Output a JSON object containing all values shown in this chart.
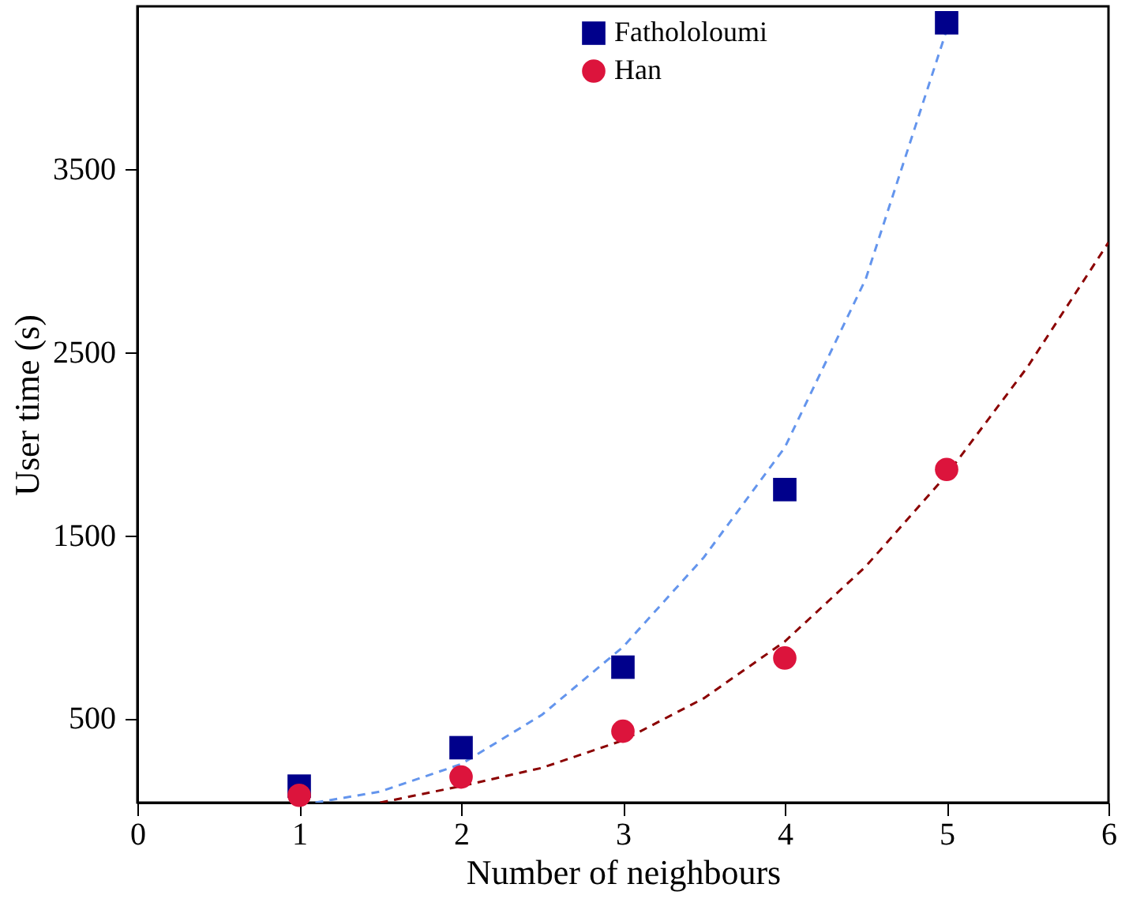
{
  "chart_data": {
    "type": "scatter",
    "xlabel": "Number of neighbours",
    "ylabel": "User time (s)",
    "xlim": [
      0,
      6
    ],
    "xticks": [
      0,
      1,
      2,
      3,
      4,
      5,
      6
    ],
    "ylim": [
      40,
      4390
    ],
    "yticks": [
      500,
      1500,
      2500,
      3500
    ],
    "legend": "top",
    "series": [
      {
        "name": "Fathololoumi",
        "color": "#00008b",
        "marker": "square",
        "x": [
          1,
          2,
          3,
          4,
          5
        ],
        "values": [
          130,
          340,
          780,
          1750,
          4300
        ]
      },
      {
        "name": "Han",
        "color": "#dc143c",
        "marker": "circle",
        "x": [
          1,
          2,
          3,
          4,
          5
        ],
        "values": [
          80,
          180,
          430,
          830,
          1860
        ]
      },
      {
        "type": "line",
        "color": "#6495ed",
        "line_style": "dashed",
        "x": [
          1.1,
          1.5,
          2,
          2.5,
          3,
          3.5,
          4,
          4.5,
          5
        ],
        "values": [
          40,
          100,
          250,
          520,
          890,
          1380,
          1980,
          2900,
          4260
        ]
      },
      {
        "type": "line",
        "color": "#8b0000",
        "line_style": "dashed",
        "x": [
          1.5,
          2,
          2.5,
          3,
          3.5,
          4,
          4.5,
          5,
          5.5,
          6
        ],
        "values": [
          40,
          130,
          230,
          380,
          610,
          920,
          1330,
          1830,
          2420,
          3100
        ]
      }
    ]
  }
}
